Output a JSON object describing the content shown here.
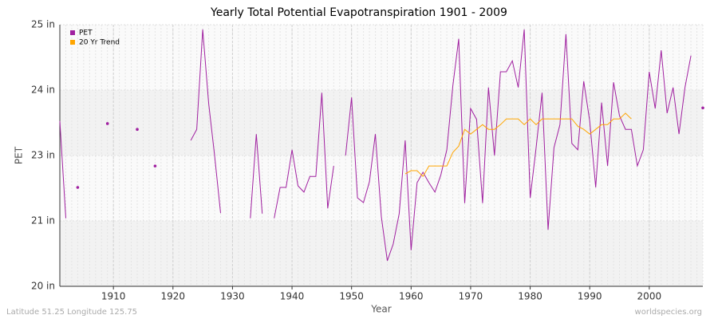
{
  "chart_data": {
    "type": "line",
    "title": "Yearly Total Potential Evapotranspiration 1901 - 2009",
    "x_label": "Year",
    "y_label": "PET",
    "footer_left": "Latitude 51.25 Longitude 125.75",
    "footer_right": "worldspecies.org",
    "legend": "top-left",
    "grid": true,
    "x": [
      1901,
      1902,
      1903,
      1904,
      1905,
      1906,
      1907,
      1908,
      1909,
      1910,
      1911,
      1912,
      1913,
      1914,
      1915,
      1916,
      1917,
      1918,
      1919,
      1920,
      1921,
      1922,
      1923,
      1924,
      1925,
      1926,
      1927,
      1928,
      1929,
      1930,
      1931,
      1932,
      1933,
      1934,
      1935,
      1936,
      1937,
      1938,
      1939,
      1940,
      1941,
      1942,
      1943,
      1944,
      1945,
      1946,
      1947,
      1948,
      1949,
      1950,
      1951,
      1952,
      1953,
      1954,
      1955,
      1956,
      1957,
      1958,
      1959,
      1960,
      1961,
      1962,
      1963,
      1964,
      1965,
      1966,
      1967,
      1968,
      1969,
      1970,
      1971,
      1972,
      1973,
      1974,
      1975,
      1976,
      1977,
      1978,
      1979,
      1980,
      1981,
      1982,
      1983,
      1984,
      1985,
      1986,
      1987,
      1988,
      1989,
      1990,
      1991,
      1992,
      1993,
      1994,
      1995,
      1996,
      1997,
      1998,
      1999,
      2000,
      2001,
      2002,
      2003,
      2004,
      2005,
      2006,
      2007,
      2008,
      2009
    ],
    "xlim": [
      1901,
      2009
    ],
    "xticks": [
      1910,
      1920,
      1930,
      1940,
      1950,
      1960,
      1970,
      1980,
      1990,
      2000
    ],
    "ylim": [
      20,
      25
    ],
    "yticks": [
      {
        "value": 20,
        "label": "20 in"
      },
      {
        "value": 21.25,
        "label": "21 in"
      },
      {
        "value": 22.5,
        "label": "23 in"
      },
      {
        "value": 23.75,
        "label": "24 in"
      },
      {
        "value": 25,
        "label": "25 in"
      }
    ],
    "series": [
      {
        "name": "PET",
        "color": "#a020a0",
        "values": [
          23.16,
          21.3,
          null,
          21.89,
          null,
          null,
          null,
          null,
          23.11,
          null,
          null,
          null,
          null,
          23.0,
          null,
          null,
          22.3,
          null,
          null,
          null,
          null,
          null,
          22.79,
          23.0,
          24.91,
          23.49,
          22.5,
          21.4,
          null,
          null,
          null,
          null,
          21.3,
          22.91,
          21.39,
          null,
          21.3,
          21.89,
          21.89,
          22.61,
          21.92,
          21.8,
          22.1,
          22.1,
          23.7,
          21.49,
          22.3,
          null,
          22.5,
          23.61,
          21.69,
          21.6,
          22.0,
          22.91,
          21.33,
          20.49,
          20.81,
          21.39,
          22.79,
          20.69,
          21.98,
          22.18,
          21.98,
          21.8,
          22.13,
          22.61,
          23.83,
          24.73,
          21.59,
          23.4,
          23.19,
          21.59,
          23.8,
          22.5,
          24.1,
          24.1,
          24.31,
          23.8,
          24.91,
          21.69,
          22.65,
          23.7,
          21.08,
          22.65,
          23.09,
          24.82,
          22.73,
          22.61,
          23.92,
          23.16,
          21.89,
          23.51,
          22.3,
          23.9,
          23.26,
          23.0,
          23.0,
          22.3,
          22.61,
          24.1,
          23.4,
          24.51,
          23.31,
          23.8,
          22.91,
          23.8,
          24.41,
          null,
          23.41
        ]
      },
      {
        "name": "20 Yr Trend",
        "color": "#ffa500",
        "values": [
          null,
          null,
          null,
          null,
          null,
          null,
          null,
          null,
          null,
          null,
          null,
          null,
          null,
          null,
          null,
          null,
          null,
          null,
          null,
          null,
          null,
          null,
          null,
          null,
          null,
          null,
          null,
          null,
          null,
          null,
          null,
          null,
          null,
          null,
          null,
          null,
          null,
          null,
          null,
          null,
          null,
          null,
          null,
          null,
          null,
          null,
          null,
          null,
          null,
          null,
          null,
          null,
          null,
          null,
          null,
          null,
          null,
          null,
          22.15,
          22.21,
          22.21,
          22.1,
          22.3,
          22.3,
          22.3,
          22.3,
          22.56,
          22.68,
          23.0,
          22.91,
          23.0,
          23.09,
          23.0,
          23.0,
          23.09,
          23.2,
          23.2,
          23.2,
          23.09,
          23.2,
          23.09,
          23.2,
          23.2,
          23.2,
          23.2,
          23.2,
          23.2,
          23.06,
          23.0,
          22.91,
          23.0,
          23.09,
          23.09,
          23.2,
          23.2,
          23.31,
          23.2,
          null,
          null,
          null,
          null,
          null,
          null,
          null,
          null,
          null,
          null,
          null,
          null
        ]
      }
    ]
  }
}
